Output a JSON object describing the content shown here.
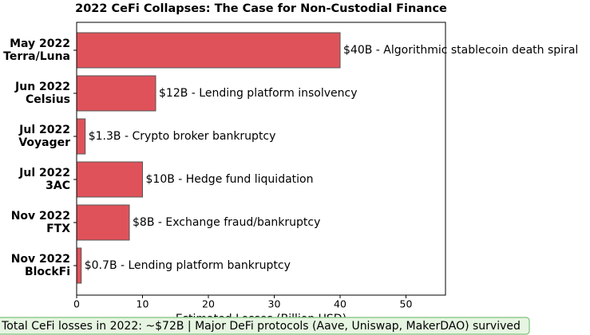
{
  "chart_data": {
    "type": "barh",
    "title": "2022 CeFi Collapses: The Case for Non-Custodial Finance",
    "categories": [
      [
        "May 2022",
        "Terra/Luna"
      ],
      [
        "Jun 2022",
        "Celsius"
      ],
      [
        "Jul 2022",
        "Voyager"
      ],
      [
        "Jul 2022",
        "3AC"
      ],
      [
        "Nov 2022",
        "FTX"
      ],
      [
        "Nov 2022",
        "BlockFi"
      ]
    ],
    "values": [
      40,
      12,
      1.3,
      10,
      8,
      0.7
    ],
    "value_labels": [
      "$40B - Algorithmic stablecoin death spiral",
      "$12B - Lending platform insolvency",
      "$1.3B - Crypto broker bankruptcy",
      "$10B - Hedge fund liquidation",
      "$8B - Exchange fraud/bankruptcy",
      "$0.7B - Lending platform bankruptcy"
    ],
    "color": "#e0525a",
    "xlabel": "Estimated Losses (Billion USD)",
    "xlim": [
      0,
      56
    ],
    "xticks": [
      0,
      10,
      20,
      30,
      40,
      50
    ],
    "annotation": "Total CeFi losses in 2022: ~$72B | Major DeFi protocols (Aave, Uniswap, MakerDAO) survived"
  }
}
